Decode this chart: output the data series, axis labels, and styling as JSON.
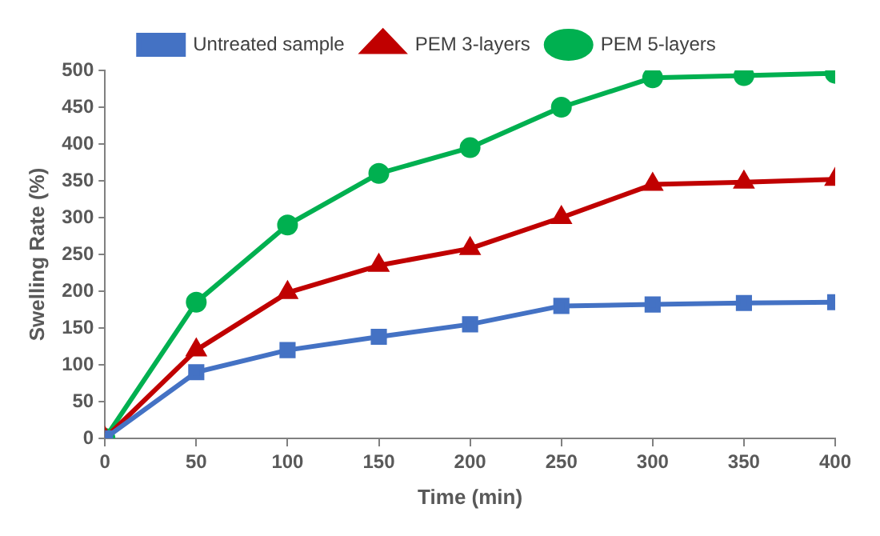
{
  "chart_data": {
    "type": "line",
    "xlabel": "Time (min)",
    "ylabel": "Swelling Rate (%)",
    "x": [
      0,
      50,
      100,
      150,
      200,
      250,
      300,
      350,
      400
    ],
    "series": [
      {
        "name": "Untreated sample",
        "color": "#4472c4",
        "marker": "square",
        "values": [
          0,
          90,
          120,
          138,
          155,
          180,
          182,
          184,
          185
        ]
      },
      {
        "name": "PEM 3-layers",
        "color": "#c00000",
        "marker": "triangle",
        "values": [
          0,
          120,
          198,
          235,
          258,
          300,
          345,
          348,
          352
        ]
      },
      {
        "name": "PEM 5-layers",
        "color": "#00b050",
        "marker": "circle",
        "values": [
          0,
          185,
          290,
          360,
          395,
          450,
          490,
          493,
          496
        ]
      }
    ],
    "xlim": [
      0,
      400
    ],
    "xticks": [
      0,
      50,
      100,
      150,
      200,
      250,
      300,
      350,
      400
    ],
    "ylim": [
      0,
      500
    ],
    "yticks": [
      0,
      50,
      100,
      150,
      200,
      250,
      300,
      350,
      400,
      450,
      500
    ],
    "grid": false,
    "legend": "top",
    "line_style": "solid"
  }
}
